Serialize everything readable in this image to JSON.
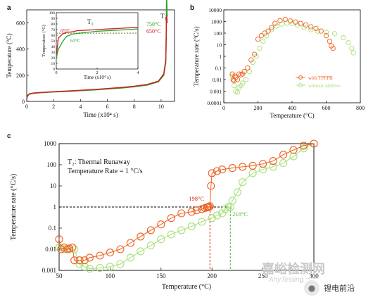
{
  "panels": {
    "a": "a",
    "b": "b",
    "c": "c"
  },
  "watermark": {
    "cn": "嘉峪检测网",
    "en": "AnyTesting.com"
  },
  "badge": {
    "icon": "wechat-icon",
    "label": "锂电前沿"
  },
  "colors": {
    "red": "#d03010",
    "orange": "#f06020",
    "green": "#4bb82e",
    "lightgreen": "#a8e07a",
    "black": "#000000"
  },
  "chart_data": [
    {
      "id": "a",
      "type": "line",
      "xlabel": "Time (x10⁴ s)",
      "ylabel": "Temperature (°C)",
      "xlim": [
        0,
        11
      ],
      "ylim": [
        0,
        700
      ],
      "xticks": [
        0,
        2,
        4,
        6,
        8,
        10
      ],
      "yticks": [
        0,
        200,
        400,
        600
      ],
      "series": [
        {
          "color": "#2aa52a",
          "x": [
            0,
            0.05,
            0.2,
            0.5,
            1,
            2,
            3,
            4,
            5,
            6,
            7,
            8,
            9,
            9.8,
            10.2,
            10.35,
            10.38,
            10.4,
            10.42,
            10.45
          ],
          "y": [
            20,
            40,
            55,
            62,
            66,
            72,
            76,
            82,
            88,
            95,
            102,
            112,
            125,
            150,
            200,
            300,
            500,
            750,
            780,
            650
          ]
        },
        {
          "color": "#cc2222",
          "x": [
            0,
            0.05,
            0.2,
            0.5,
            1,
            2,
            3,
            4,
            5,
            6,
            7,
            8,
            9,
            9.8,
            10.2,
            10.35,
            10.38,
            10.4,
            10.42,
            10.45
          ],
          "y": [
            22,
            45,
            58,
            64,
            68,
            74,
            79,
            85,
            91,
            98,
            106,
            116,
            130,
            155,
            210,
            320,
            520,
            640,
            660,
            600
          ]
        }
      ],
      "annotations": {
        "t3": "T₃",
        "t750": "750°C",
        "t650": "650°C"
      },
      "inset": {
        "xlabel": "Time (x10⁴ s)",
        "ylabel": "Temperature (°C)",
        "xlim": [
          0,
          4
        ],
        "ylim": [
          0,
          100
        ],
        "xticks": [
          0,
          2,
          4
        ],
        "yticks": [
          0,
          10,
          20,
          30,
          40,
          50,
          60,
          70,
          80,
          90,
          100
        ],
        "label_t1": "T₁",
        "label_65": "65°C",
        "label_63": "63°C",
        "series": [
          {
            "color": "#cc2222",
            "x": [
              0,
              0.1,
              0.3,
              0.5,
              0.8,
              1.0,
              1.5,
              2.0,
              2.5,
              3.0,
              3.5,
              4.0
            ],
            "y": [
              22,
              55,
              62,
              65,
              66,
              68,
              69,
              70,
              71,
              72,
              73,
              74
            ]
          },
          {
            "color": "#2aa52a",
            "x": [
              0,
              0.1,
              0.3,
              0.5,
              0.8,
              1.0,
              1.5,
              2.0,
              2.5,
              3.0,
              3.5,
              4.0
            ],
            "y": [
              20,
              35,
              48,
              58,
              62,
              63,
              65,
              67,
              68,
              69,
              70,
              71
            ]
          }
        ]
      }
    },
    {
      "id": "b",
      "type": "scatter",
      "xlabel": "Temperature (°C)",
      "ylabel": "Temperature rate (°C/s)",
      "xlim": [
        0,
        800
      ],
      "ylim_log": [
        0.0001,
        10000
      ],
      "xticks": [
        0,
        200,
        400,
        600,
        800
      ],
      "yticks": [
        0.0001,
        0.001,
        0.01,
        0.1,
        1,
        10,
        100,
        1000,
        10000
      ],
      "ytick_labels": [
        "0.0001",
        "0.001",
        "0.01",
        "0.1",
        "1",
        "10",
        "100",
        "1000",
        "10000"
      ],
      "legend": [
        "with TPFPB",
        "without additive"
      ],
      "series": [
        {
          "name": "with TPFPB",
          "color": "#f06020",
          "x": [
            50,
            55,
            60,
            65,
            70,
            80,
            90,
            100,
            110,
            120,
            140,
            160,
            180,
            200,
            220,
            240,
            260,
            280,
            300,
            330,
            360,
            390,
            420,
            450,
            480,
            510,
            540,
            570,
            600,
            620,
            630,
            640
          ],
          "y": [
            0.03,
            0.01,
            0.008,
            0.02,
            0.015,
            0.01,
            0.03,
            0.025,
            0.03,
            0.05,
            0.1,
            0.5,
            1.5,
            30,
            60,
            100,
            150,
            300,
            700,
            1200,
            1500,
            1100,
            900,
            700,
            500,
            350,
            250,
            150,
            60,
            20,
            8,
            5
          ]
        },
        {
          "name": "without additive",
          "color": "#a8e07a",
          "x": [
            50,
            55,
            60,
            70,
            80,
            90,
            100,
            110,
            130,
            150,
            170,
            190,
            210,
            230,
            250,
            280,
            310,
            340,
            370,
            400,
            430,
            470,
            510,
            550,
            600,
            650,
            700,
            730,
            750,
            760
          ],
          "y": [
            0.02,
            0.01,
            0.003,
            0.001,
            0.0008,
            0.002,
            0.003,
            0.005,
            0.01,
            0.05,
            0.3,
            1,
            5,
            20,
            60,
            200,
            400,
            600,
            700,
            650,
            500,
            300,
            200,
            150,
            120,
            90,
            40,
            15,
            5,
            2
          ]
        }
      ]
    },
    {
      "id": "c",
      "type": "scatter",
      "xlabel": "Temperature (°C)",
      "ylabel": "Temperature rate (°C/s)",
      "xlim": [
        50,
        300
      ],
      "ylim_log": [
        0.001,
        1000
      ],
      "xticks": [
        50,
        100,
        150,
        200,
        250,
        300
      ],
      "yticks": [
        0.001,
        0.01,
        0.1,
        1,
        10,
        100,
        1000
      ],
      "ytick_labels": [
        "0.001",
        "0.01",
        "0.1",
        "1",
        "10",
        "100",
        "1000"
      ],
      "text_line1": "T₂: Thermal Runaway",
      "text_line2": "Temperature Rate = 1 °C/s",
      "label_198": "198°C",
      "label_218": "218°C",
      "series": [
        {
          "name": "with TPFPB",
          "color": "#f06020",
          "x": [
            50,
            52,
            55,
            58,
            60,
            63,
            65,
            70,
            75,
            80,
            90,
            100,
            110,
            120,
            130,
            140,
            150,
            160,
            170,
            180,
            185,
            190,
            193,
            195,
            196,
            197,
            198,
            199,
            200,
            205,
            210,
            220,
            230,
            240,
            250,
            260,
            270,
            280,
            290,
            300
          ],
          "y": [
            0.03,
            0.01,
            0.012,
            0.01,
            0.011,
            0.012,
            0.003,
            0.003,
            0.003,
            0.004,
            0.005,
            0.007,
            0.01,
            0.02,
            0.04,
            0.08,
            0.15,
            0.3,
            0.5,
            0.6,
            0.7,
            0.8,
            0.9,
            0.95,
            1.0,
            1.0,
            1.1,
            10,
            40,
            50,
            60,
            70,
            80,
            90,
            110,
            150,
            300,
            500,
            800,
            1000
          ]
        },
        {
          "name": "without additive",
          "color": "#a8e07a",
          "x": [
            50,
            55,
            60,
            65,
            70,
            75,
            80,
            90,
            100,
            110,
            120,
            130,
            140,
            150,
            160,
            170,
            180,
            190,
            200,
            205,
            210,
            213,
            216,
            218,
            220,
            225,
            230,
            240,
            250,
            260,
            270,
            280,
            290,
            300
          ],
          "y": [
            0.012,
            0.01,
            0.01,
            0.01,
            0.002,
            0.0015,
            0.0012,
            0.0013,
            0.0015,
            0.002,
            0.004,
            0.008,
            0.015,
            0.03,
            0.05,
            0.08,
            0.12,
            0.2,
            0.3,
            0.4,
            0.5,
            0.8,
            1.0,
            1.0,
            2,
            5,
            15,
            40,
            60,
            80,
            120,
            250,
            600,
            1000
          ]
        }
      ]
    }
  ]
}
